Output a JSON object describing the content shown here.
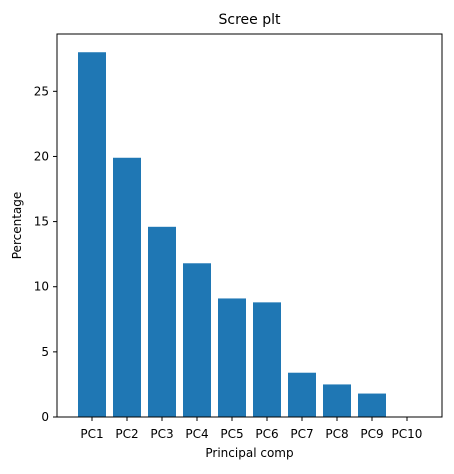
{
  "chart_data": {
    "type": "bar",
    "title": "Scree plt",
    "xlabel": "Principal comp",
    "ylabel": "Percentage",
    "categories": [
      "PC1",
      "PC2",
      "PC3",
      "PC4",
      "PC5",
      "PC6",
      "PC7",
      "PC8",
      "PC9",
      "PC10"
    ],
    "values": [
      28.0,
      19.9,
      14.6,
      11.8,
      9.1,
      8.8,
      3.4,
      2.5,
      1.8,
      0.0
    ],
    "ylim": [
      0,
      29.4
    ],
    "yticks": [
      0,
      5,
      10,
      15,
      20,
      25
    ],
    "grid": false,
    "bar_color": "#1f77b4"
  }
}
